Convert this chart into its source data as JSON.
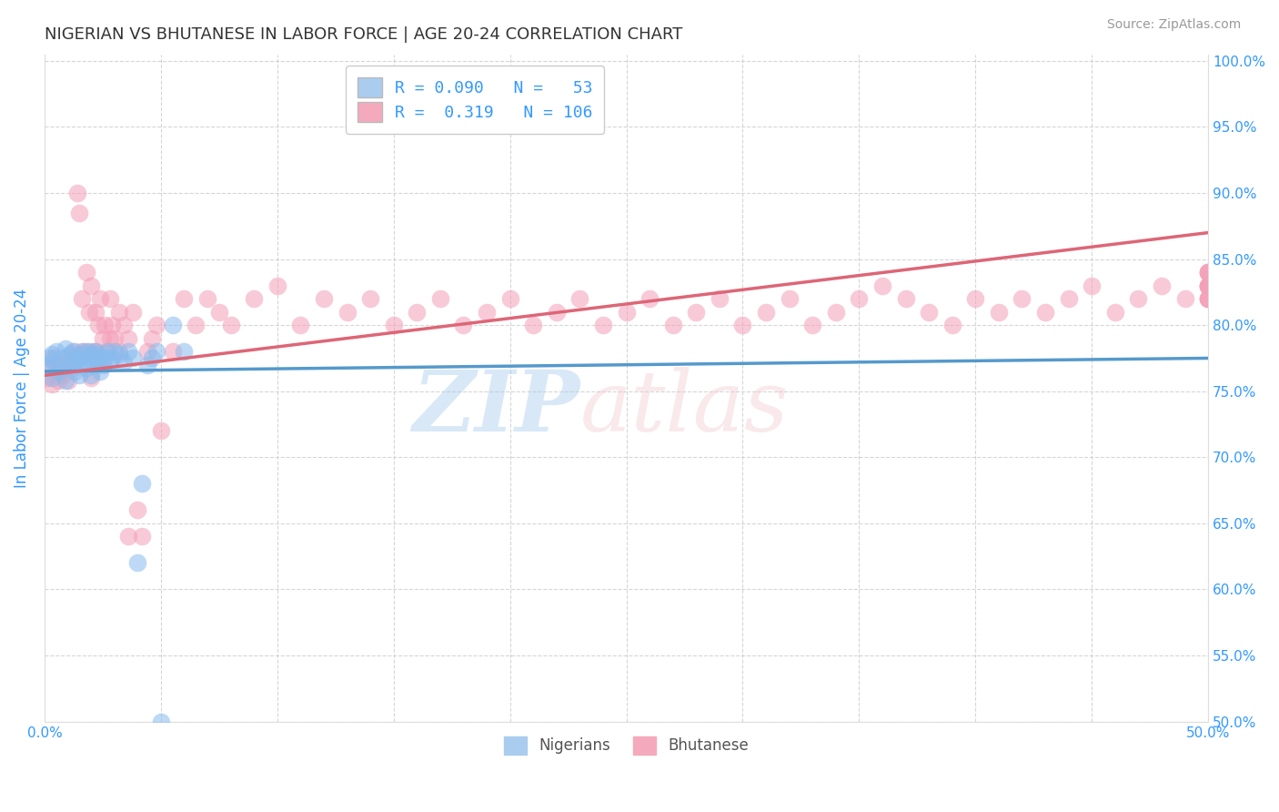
{
  "title": "NIGERIAN VS BHUTANESE IN LABOR FORCE | AGE 20-24 CORRELATION CHART",
  "source": "Source: ZipAtlas.com",
  "ylabel": "In Labor Force | Age 20-24",
  "xlim": [
    0.0,
    0.5
  ],
  "ylim": [
    0.5,
    1.005
  ],
  "nigerian_color": "#88bbee",
  "bhutanese_color": "#f4a0b8",
  "nigerian_line_color": "#5599cc",
  "bhutanese_line_color": "#dd6677",
  "background_color": "#ffffff",
  "grid_color": "#cccccc",
  "axis_label_color": "#3399ff",
  "nigerian_x": [
    0.001,
    0.002,
    0.003,
    0.003,
    0.004,
    0.005,
    0.006,
    0.007,
    0.008,
    0.009,
    0.009,
    0.01,
    0.011,
    0.012,
    0.012,
    0.013,
    0.014,
    0.015,
    0.015,
    0.016,
    0.016,
    0.017,
    0.018,
    0.019,
    0.019,
    0.02,
    0.02,
    0.021,
    0.022,
    0.022,
    0.023,
    0.024,
    0.024,
    0.025,
    0.026,
    0.027,
    0.028,
    0.029,
    0.03,
    0.032,
    0.034,
    0.036,
    0.038,
    0.04,
    0.042,
    0.044,
    0.046,
    0.048,
    0.05,
    0.055,
    0.06,
    0.048,
    0.05
  ],
  "nigerian_y": [
    0.77,
    0.775,
    0.778,
    0.76,
    0.772,
    0.78,
    0.765,
    0.768,
    0.775,
    0.782,
    0.758,
    0.77,
    0.778,
    0.772,
    0.78,
    0.765,
    0.77,
    0.775,
    0.762,
    0.778,
    0.78,
    0.772,
    0.768,
    0.78,
    0.775,
    0.778,
    0.762,
    0.77,
    0.775,
    0.78,
    0.772,
    0.778,
    0.765,
    0.77,
    0.775,
    0.78,
    0.772,
    0.775,
    0.78,
    0.778,
    0.772,
    0.78,
    0.775,
    0.62,
    0.68,
    0.77,
    0.775,
    0.78,
    0.478,
    0.8,
    0.78,
    0.478,
    0.5
  ],
  "bhutanese_x": [
    0.001,
    0.002,
    0.003,
    0.004,
    0.005,
    0.006,
    0.007,
    0.008,
    0.009,
    0.01,
    0.011,
    0.012,
    0.013,
    0.014,
    0.015,
    0.016,
    0.017,
    0.018,
    0.019,
    0.02,
    0.021,
    0.022,
    0.023,
    0.024,
    0.025,
    0.026,
    0.027,
    0.028,
    0.029,
    0.03,
    0.032,
    0.034,
    0.036,
    0.038,
    0.04,
    0.042,
    0.044,
    0.046,
    0.048,
    0.05,
    0.055,
    0.06,
    0.065,
    0.07,
    0.075,
    0.08,
    0.09,
    0.1,
    0.11,
    0.12,
    0.13,
    0.14,
    0.15,
    0.16,
    0.17,
    0.18,
    0.19,
    0.2,
    0.21,
    0.22,
    0.23,
    0.24,
    0.25,
    0.26,
    0.27,
    0.28,
    0.29,
    0.3,
    0.31,
    0.32,
    0.33,
    0.34,
    0.35,
    0.36,
    0.37,
    0.38,
    0.39,
    0.4,
    0.41,
    0.42,
    0.43,
    0.44,
    0.45,
    0.46,
    0.47,
    0.48,
    0.49,
    0.5,
    0.5,
    0.5,
    0.5,
    0.5,
    0.5,
    0.5,
    0.5,
    0.5,
    0.5,
    0.5,
    0.5,
    0.5,
    0.018,
    0.02,
    0.022,
    0.028,
    0.032,
    0.036
  ],
  "bhutanese_y": [
    0.76,
    0.768,
    0.755,
    0.775,
    0.77,
    0.758,
    0.765,
    0.762,
    0.77,
    0.758,
    0.775,
    0.768,
    0.78,
    0.9,
    0.885,
    0.82,
    0.78,
    0.84,
    0.81,
    0.83,
    0.78,
    0.81,
    0.8,
    0.82,
    0.79,
    0.8,
    0.78,
    0.82,
    0.8,
    0.79,
    0.81,
    0.8,
    0.79,
    0.81,
    0.66,
    0.64,
    0.78,
    0.79,
    0.8,
    0.72,
    0.78,
    0.82,
    0.8,
    0.82,
    0.81,
    0.8,
    0.82,
    0.83,
    0.8,
    0.82,
    0.81,
    0.82,
    0.8,
    0.81,
    0.82,
    0.8,
    0.81,
    0.82,
    0.8,
    0.81,
    0.82,
    0.8,
    0.81,
    0.82,
    0.8,
    0.81,
    0.82,
    0.8,
    0.81,
    0.82,
    0.8,
    0.81,
    0.82,
    0.83,
    0.82,
    0.81,
    0.8,
    0.82,
    0.81,
    0.82,
    0.81,
    0.82,
    0.83,
    0.81,
    0.82,
    0.83,
    0.82,
    0.83,
    0.84,
    0.82,
    0.83,
    0.84,
    0.82,
    0.83,
    0.84,
    0.82,
    0.83,
    0.84,
    0.82,
    0.83,
    0.78,
    0.76,
    0.78,
    0.79,
    0.78,
    0.64
  ],
  "nig_line_x0": 0.0,
  "nig_line_x1": 0.5,
  "nig_line_y0": 0.765,
  "nig_line_y1": 0.775,
  "bhu_line_x0": 0.0,
  "bhu_line_x1": 0.5,
  "bhu_line_y0": 0.762,
  "bhu_line_y1": 0.87
}
